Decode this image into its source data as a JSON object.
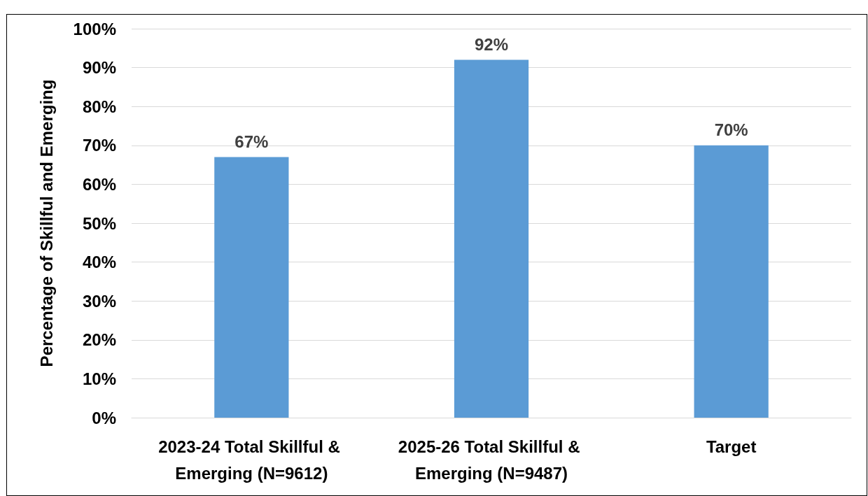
{
  "chart_data": {
    "type": "bar",
    "ylabel": "Percentage of Skillful and Emerging",
    "categories": [
      "2023-24 Total Skillful & Emerging (N=9612)",
      "2025-26 Total Skillful & Emerging (N=9487)",
      "Target"
    ],
    "values": [
      67,
      92,
      70
    ],
    "color": "#5b9bd5",
    "value_labels": [
      "67%",
      "92%",
      "70%"
    ],
    "ylim": [
      0,
      100
    ],
    "yticks": [
      {
        "value": 0,
        "label": "0%"
      },
      {
        "value": 10,
        "label": "10%"
      },
      {
        "value": 20,
        "label": "20%"
      },
      {
        "value": 30,
        "label": "30%"
      },
      {
        "value": 40,
        "label": "40%"
      },
      {
        "value": 50,
        "label": "50%"
      },
      {
        "value": 60,
        "label": "60%"
      },
      {
        "value": 70,
        "label": "70%"
      },
      {
        "value": 80,
        "label": "80%"
      },
      {
        "value": 90,
        "label": "90%"
      },
      {
        "value": 100,
        "label": "100%"
      }
    ],
    "grid": "y"
  }
}
